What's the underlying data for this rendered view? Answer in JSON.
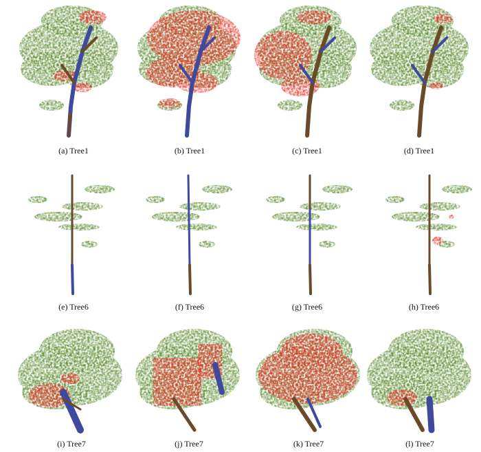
{
  "figure": {
    "panels": [
      {
        "caption": "(a) Tree1"
      },
      {
        "caption": "(b) Tree1"
      },
      {
        "caption": "(c) Tree1"
      },
      {
        "caption": "(d) Tree1"
      },
      {
        "caption": "(e) Tree6"
      },
      {
        "caption": "(f) Tree6"
      },
      {
        "caption": "(g) Tree6"
      },
      {
        "caption": "(h) Tree6"
      },
      {
        "caption": "(i) Tree7"
      },
      {
        "caption": "(j) Tree7"
      },
      {
        "caption": "(k) Tree7"
      },
      {
        "caption": "(l) Tree7"
      }
    ]
  }
}
